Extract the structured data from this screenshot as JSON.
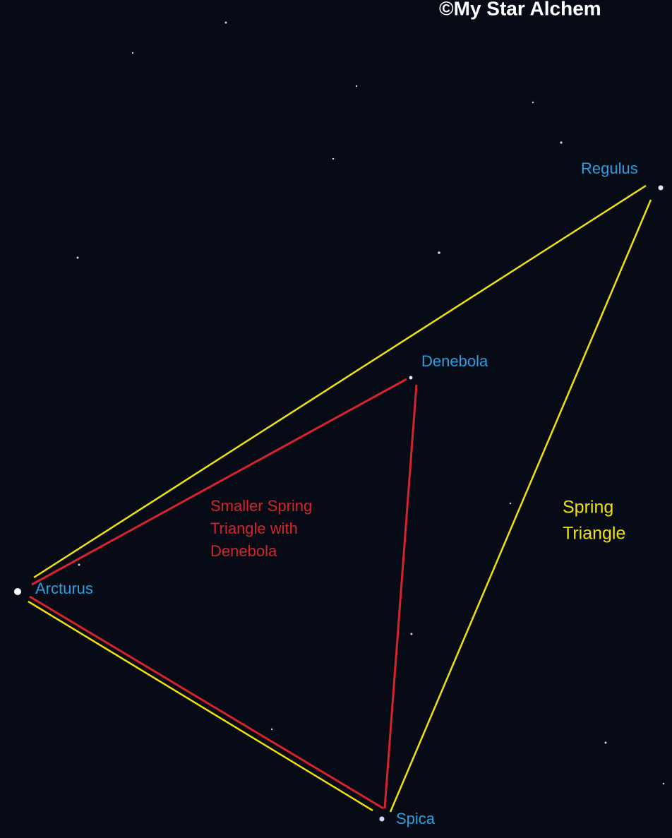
{
  "watermark": "©My Star Alchem",
  "stars": [
    "Regulus",
    "Denebola",
    "Arcturus",
    "Spica"
  ],
  "smaller_triangle": [
    "Smaller Spring",
    "Triangle with",
    "Denebola"
  ],
  "spring_triangle": [
    "Spring",
    "Triangle"
  ]
}
